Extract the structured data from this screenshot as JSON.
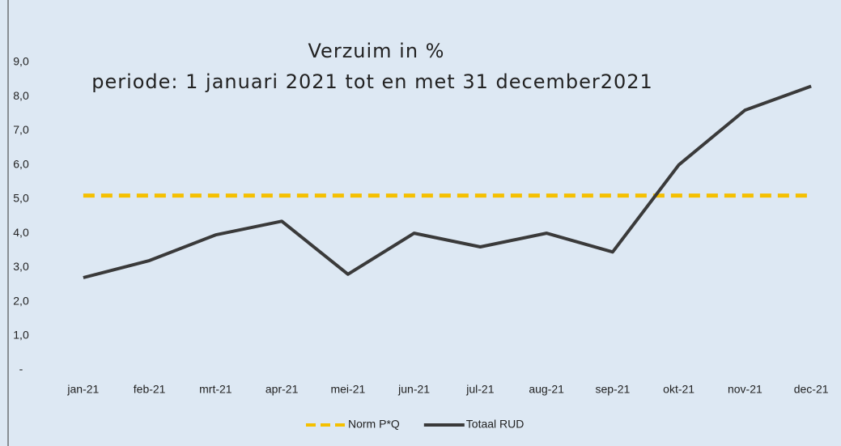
{
  "chart_data": {
    "type": "line",
    "title": "Verzuim in %",
    "subtitle": "periode: 1 januari 2021 tot en met 31 december2021",
    "categories": [
      "jan-21",
      "feb-21",
      "mrt-21",
      "apr-21",
      "mei-21",
      "jun-21",
      "jul-21",
      "aug-21",
      "sep-21",
      "okt-21",
      "nov-21",
      "dec-21"
    ],
    "series": [
      {
        "name": "Norm P*Q",
        "color": "#f5c000",
        "dashed": true,
        "values": [
          5.1,
          5.1,
          5.1,
          5.1,
          5.1,
          5.1,
          5.1,
          5.1,
          5.1,
          5.1,
          5.1,
          5.1
        ]
      },
      {
        "name": "Totaal RUD",
        "color": "#3a3a3a",
        "dashed": false,
        "values": [
          2.7,
          3.2,
          3.95,
          4.35,
          2.8,
          4.0,
          3.6,
          4.0,
          3.45,
          6.0,
          7.6,
          8.3
        ]
      }
    ],
    "ylim": [
      0,
      9
    ],
    "yticks": [
      {
        "value": 0,
        "label": "-"
      },
      {
        "value": 1,
        "label": "1,0"
      },
      {
        "value": 2,
        "label": "2,0"
      },
      {
        "value": 3,
        "label": "3,0"
      },
      {
        "value": 4,
        "label": "4,0"
      },
      {
        "value": 5,
        "label": "5,0"
      },
      {
        "value": 6,
        "label": "6,0"
      },
      {
        "value": 7,
        "label": "7,0"
      },
      {
        "value": 8,
        "label": "8,0"
      },
      {
        "value": 9,
        "label": "9,0"
      }
    ],
    "grid": false,
    "legend": "bottom"
  }
}
